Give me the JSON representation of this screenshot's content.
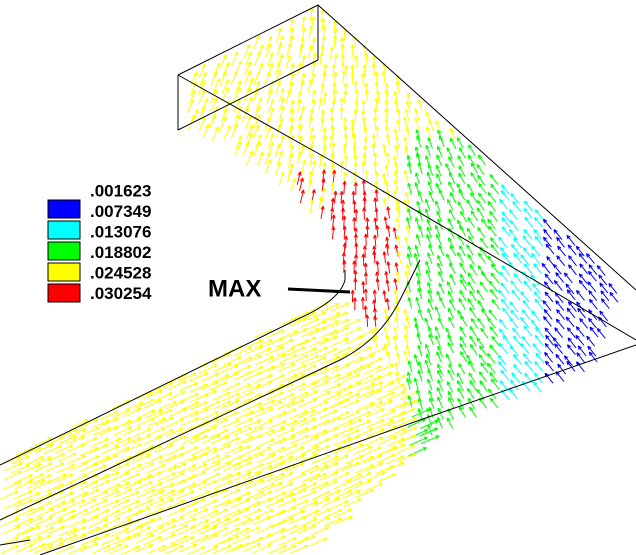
{
  "legend": {
    "labels": [
      ".001623",
      ".007349",
      ".013076",
      ".018802",
      ".024528",
      ".030254"
    ],
    "colors": [
      "#0000ff",
      "#00ffff",
      "#00ff00",
      "#ffff00",
      "#ff0000"
    ]
  },
  "annotation": "MAX"
}
